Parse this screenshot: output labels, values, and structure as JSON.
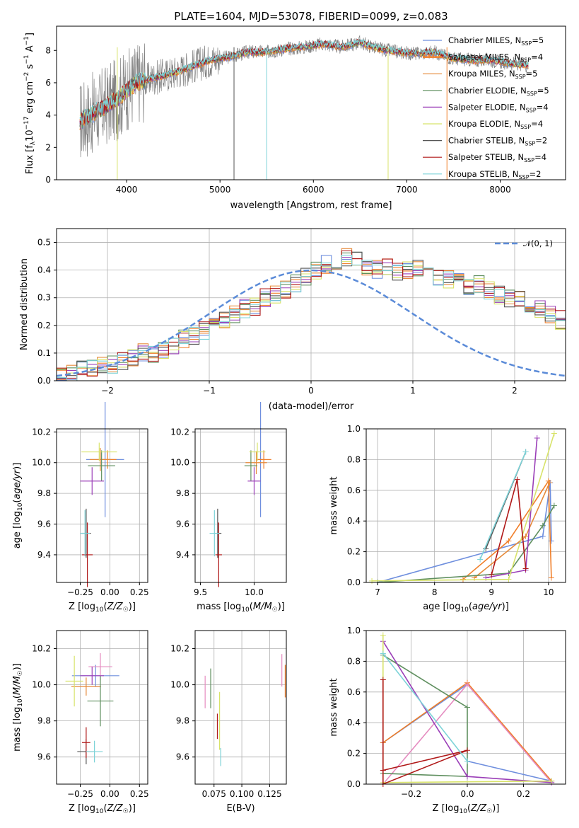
{
  "figure_title": "PLATE=1604, MJD=53078, FIBERID=0099, z=0.083",
  "colors": {
    "cm": "#6f8fde",
    "sm": "#f07f2a",
    "km": "#e68a3a",
    "ce": "#5f8f5f",
    "se": "#9b3fb8",
    "ke": "#d8e36a",
    "cs": "#555555",
    "ss": "#b01818",
    "ks": "#7dd3d8",
    "data": "#808080",
    "norm": "#5b8bd8",
    "pink": "#e58cc0"
  },
  "legend": [
    {
      "name": "Chabrier MILES, N",
      "sub": "SSP",
      "val": "=5",
      "color": "#6f8fde"
    },
    {
      "name": "Salpeter MILES, N",
      "sub": "SSP",
      "val": "=4",
      "color": "#f07f2a"
    },
    {
      "name": "Kroupa MILES, N",
      "sub": "SSP",
      "val": "=5",
      "color": "#e68a3a"
    },
    {
      "name": "Chabrier ELODIE, N",
      "sub": "SSP",
      "val": "=5",
      "color": "#5f8f5f"
    },
    {
      "name": "Salpeter ELODIE, N",
      "sub": "SSP",
      "val": "=4",
      "color": "#9b3fb8"
    },
    {
      "name": "Kroupa ELODIE, N",
      "sub": "SSP",
      "val": "=4",
      "color": "#d8e36a"
    },
    {
      "name": "Chabrier STELIB, N",
      "sub": "SSP",
      "val": "=2",
      "color": "#555555"
    },
    {
      "name": "Salpeter STELIB, N",
      "sub": "SSP",
      "val": "=4",
      "color": "#b01818"
    },
    {
      "name": "Kroupa STELIB, N",
      "sub": "SSP",
      "val": "=2",
      "color": "#7dd3d8"
    }
  ],
  "chart_data": [
    {
      "type": "line",
      "title": "PLATE=1604, MJD=53078, FIBERID=0099, z=0.083",
      "xlabel": "wavelength [Angstrom, rest frame]",
      "ylabel": "Flux [f_λ 10^-17 erg cm^-2 s^-1 A^-1]",
      "xlim": [
        3250,
        8700
      ],
      "ylim": [
        0,
        9.5
      ],
      "xticks": [
        "4000",
        "5000",
        "6000",
        "7000",
        "8000"
      ],
      "yticks": [
        "0",
        "2",
        "4",
        "6",
        "8"
      ],
      "grid": false,
      "legend_position": "top-right",
      "series_note": "observed spectrum (grey) with 9 model fits",
      "x": [
        3500,
        3700,
        3900,
        4100,
        4300,
        4500,
        4700,
        4900,
        5100,
        5300,
        5500,
        5700,
        5900,
        6100,
        6300,
        6500,
        6700,
        6900,
        7100,
        7300,
        7500,
        7700,
        7900,
        8100,
        8300
      ],
      "y": [
        3.6,
        4.3,
        5.0,
        6.0,
        6.3,
        6.6,
        7.0,
        7.4,
        7.6,
        7.9,
        7.9,
        8.1,
        8.2,
        8.4,
        8.2,
        8.5,
        8.1,
        7.9,
        7.8,
        7.9,
        7.5,
        7.4,
        7.4,
        7.2,
        7.1
      ]
    },
    {
      "type": "histogram",
      "xlabel": "(data-model)/error",
      "ylabel": "Normed distribution",
      "xlim": [
        -2.5,
        2.5
      ],
      "ylim": [
        0,
        0.55
      ],
      "xticks": [
        "−2",
        "−1",
        "0",
        "1",
        "2"
      ],
      "yticks": [
        "0.0",
        "0.1",
        "0.2",
        "0.3",
        "0.4",
        "0.5"
      ],
      "grid": true,
      "legend_position": "top-right",
      "reference_label": "𝒩(0, 1)",
      "bin_edges_start": -2.5,
      "bin_width": 0.1,
      "values": [
        0.02,
        0.03,
        0.04,
        0.05,
        0.05,
        0.06,
        0.07,
        0.08,
        0.1,
        0.1,
        0.11,
        0.13,
        0.15,
        0.16,
        0.18,
        0.2,
        0.22,
        0.24,
        0.26,
        0.27,
        0.3,
        0.31,
        0.33,
        0.35,
        0.38,
        0.4,
        0.42,
        0.43,
        0.45,
        0.44,
        0.41,
        0.4,
        0.41,
        0.39,
        0.4,
        0.41,
        0.4,
        0.38,
        0.37,
        0.36,
        0.34,
        0.35,
        0.33,
        0.31,
        0.3,
        0.29,
        0.27,
        0.26,
        0.24,
        0.22
      ]
    },
    {
      "type": "scatter",
      "xlabel": "Z [log10(Z/Z☉)]",
      "ylabel": "age [log10(age/yr)]",
      "xlim": [
        -0.45,
        0.32
      ],
      "ylim": [
        9.22,
        10.22
      ],
      "xticks": [
        "−0.25",
        "0.00",
        "0.25"
      ],
      "yticks": [
        "9.4",
        "9.6",
        "9.8",
        "10.0",
        "10.2"
      ],
      "points": [
        {
          "x": -0.04,
          "y": 10.02,
          "xe": 0.32,
          "ye": 0.75,
          "c": "cm"
        },
        {
          "x": -0.02,
          "y": 10.02,
          "xe": 0.15,
          "ye": 0.12,
          "c": "sm"
        },
        {
          "x": -0.08,
          "y": 10.02,
          "xe": 0.18,
          "ye": 0.15,
          "c": "km"
        },
        {
          "x": -0.07,
          "y": 9.98,
          "xe": 0.23,
          "ye": 0.2,
          "c": "ce"
        },
        {
          "x": -0.15,
          "y": 9.88,
          "xe": 0.2,
          "ye": 0.18,
          "c": "se"
        },
        {
          "x": -0.09,
          "y": 10.07,
          "xe": 0.3,
          "ye": 0.12,
          "c": "ke"
        },
        {
          "x": -0.2,
          "y": 9.54,
          "xe": 0.08,
          "ye": 0.32,
          "c": "cs"
        },
        {
          "x": -0.19,
          "y": 9.4,
          "xe": 0.09,
          "ye": 0.42,
          "c": "ss"
        },
        {
          "x": -0.21,
          "y": 9.54,
          "xe": 0.08,
          "ye": 0.3,
          "c": "ks"
        }
      ]
    },
    {
      "type": "scatter",
      "xlabel": "mass [log10(M/M☉)]",
      "ylabel": "",
      "xlim": [
        9.45,
        10.3
      ],
      "ylim": [
        9.22,
        10.22
      ],
      "xticks": [
        "9.5",
        "10.0"
      ],
      "yticks": [
        "9.4",
        "9.6",
        "9.8",
        "10.0",
        "10.2"
      ],
      "points": [
        {
          "x": 10.06,
          "y": 10.02,
          "xe": 0.06,
          "ye": 0.75,
          "c": "cm"
        },
        {
          "x": 10.09,
          "y": 10.02,
          "xe": 0.14,
          "ye": 0.12,
          "c": "sm"
        },
        {
          "x": 10.02,
          "y": 10.0,
          "xe": 0.2,
          "ye": 0.15,
          "c": "km"
        },
        {
          "x": 9.97,
          "y": 9.98,
          "xe": 0.12,
          "ye": 0.2,
          "c": "ce"
        },
        {
          "x": 10.0,
          "y": 9.88,
          "xe": 0.12,
          "ye": 0.18,
          "c": "se"
        },
        {
          "x": 10.03,
          "y": 10.07,
          "xe": 0.15,
          "ye": 0.12,
          "c": "ke"
        },
        {
          "x": 9.66,
          "y": 9.54,
          "xe": 0.07,
          "ye": 0.32,
          "c": "cs"
        },
        {
          "x": 9.67,
          "y": 9.4,
          "xe": 0.06,
          "ye": 0.42,
          "c": "ss"
        },
        {
          "x": 9.63,
          "y": 9.54,
          "xe": 0.09,
          "ye": 0.3,
          "c": "ks"
        }
      ]
    },
    {
      "type": "line",
      "xlabel": "age [log10(age/yr)]",
      "ylabel": "mass weight",
      "xlim": [
        6.8,
        10.3
      ],
      "ylim": [
        0,
        1.0
      ],
      "xticks": [
        "7",
        "8",
        "9",
        "10"
      ],
      "yticks": [
        "0.0",
        "0.2",
        "0.4",
        "0.6",
        "0.8",
        "1.0"
      ],
      "series": [
        {
          "c": "cm",
          "x": [
            7.0,
            9.9,
            10.03,
            10.05
          ],
          "y": [
            0.0,
            0.3,
            0.65,
            0.27
          ]
        },
        {
          "c": "sm",
          "x": [
            8.5,
            9.3,
            10.0,
            10.05
          ],
          "y": [
            0.02,
            0.27,
            0.66,
            0.03
          ]
        },
        {
          "c": "km",
          "x": [
            8.7,
            9.6,
            10.02
          ],
          "y": [
            0.03,
            0.3,
            0.65
          ]
        },
        {
          "c": "ce",
          "x": [
            7.0,
            9.3,
            9.9,
            10.1
          ],
          "y": [
            0.0,
            0.06,
            0.37,
            0.5
          ]
        },
        {
          "c": "se",
          "x": [
            8.9,
            9.6,
            9.8
          ],
          "y": [
            0.03,
            0.08,
            0.94
          ]
        },
        {
          "c": "ke",
          "x": [
            6.9,
            9.3,
            10.1
          ],
          "y": [
            0.01,
            0.02,
            0.97
          ]
        },
        {
          "c": "cs",
          "x": [
            8.9,
            9.6
          ],
          "y": [
            0.22,
            0.85
          ]
        },
        {
          "c": "ss",
          "x": [
            9.0,
            9.45,
            9.6
          ],
          "y": [
            0.05,
            0.67,
            0.09
          ]
        },
        {
          "c": "ks",
          "x": [
            8.8,
            9.6
          ],
          "y": [
            0.15,
            0.85
          ]
        }
      ]
    },
    {
      "type": "scatter",
      "xlabel": "Z [log10(Z/Z☉)]",
      "ylabel": "mass [log10(M/M☉)]",
      "xlim": [
        -0.45,
        0.32
      ],
      "ylim": [
        9.45,
        10.3
      ],
      "xticks": [
        "−0.25",
        "0.00",
        "0.25"
      ],
      "yticks": [
        "9.6",
        "9.8",
        "10.0",
        "10.2"
      ],
      "points": [
        {
          "x": -0.12,
          "y": 10.05,
          "xe": 0.4,
          "ye": 0.12,
          "c": "cm"
        },
        {
          "x": -0.08,
          "y": 10.1,
          "xe": 0.2,
          "ye": 0.15,
          "c": "pink"
        },
        {
          "x": -0.2,
          "y": 9.99,
          "xe": 0.25,
          "ye": 0.1,
          "c": "km"
        },
        {
          "x": -0.08,
          "y": 9.91,
          "xe": 0.22,
          "ye": 0.28,
          "c": "ce"
        },
        {
          "x": -0.15,
          "y": 10.05,
          "xe": 0.2,
          "ye": 0.1,
          "c": "se"
        },
        {
          "x": -0.3,
          "y": 10.02,
          "xe": 0.15,
          "ye": 0.28,
          "c": "ke"
        },
        {
          "x": -0.2,
          "y": 9.63,
          "xe": 0.15,
          "ye": 0.14,
          "c": "cs"
        },
        {
          "x": -0.2,
          "y": 9.68,
          "xe": 0.07,
          "ye": 0.17,
          "c": "ss"
        },
        {
          "x": -0.13,
          "y": 9.63,
          "xe": 0.14,
          "ye": 0.12,
          "c": "ks"
        }
      ]
    },
    {
      "type": "scatter",
      "xlabel": "E(B-V)",
      "ylabel": "",
      "xlim": [
        0.058,
        0.14
      ],
      "ylim": [
        9.45,
        10.3
      ],
      "xticks": [
        "0.075",
        "0.100",
        "0.125"
      ],
      "yticks": [
        "9.6",
        "9.8",
        "10.0",
        "10.2"
      ],
      "points": [
        {
          "x": 0.067,
          "y": 9.96,
          "ye": 0.18,
          "c": "pink"
        },
        {
          "x": 0.072,
          "y": 9.98,
          "ye": 0.22,
          "c": "ce"
        },
        {
          "x": 0.078,
          "y": 9.77,
          "ye": 0.14,
          "c": "ss"
        },
        {
          "x": 0.08,
          "y": 9.8,
          "ye": 0.32,
          "c": "ke"
        },
        {
          "x": 0.081,
          "y": 9.6,
          "ye": 0.1,
          "c": "ks"
        },
        {
          "x": 0.136,
          "y": 10.08,
          "ye": 0.18,
          "c": "pink"
        },
        {
          "x": 0.139,
          "y": 10.02,
          "ye": 0.18,
          "c": "sm"
        }
      ]
    },
    {
      "type": "line",
      "xlabel": "Z [log10(Z/Z☉)]",
      "ylabel": "mass weight",
      "xlim": [
        -0.36,
        0.35
      ],
      "ylim": [
        0,
        1.0
      ],
      "xticks": [
        "−0.2",
        "0.0",
        "0.2"
      ],
      "yticks": [
        "0.0",
        "0.2",
        "0.4",
        "0.6",
        "0.8",
        "1.0"
      ],
      "series": [
        {
          "c": "cm",
          "x": [
            -0.3,
            0.0,
            0.3,
            0.0
          ],
          "y": [
            0.27,
            0.65,
            0.02,
            0.15
          ]
        },
        {
          "c": "sm",
          "x": [
            -0.3,
            0.0,
            0.3
          ],
          "y": [
            0.27,
            0.66,
            0.02
          ]
        },
        {
          "c": "pink",
          "x": [
            -0.3,
            0.0,
            0.3
          ],
          "y": [
            0.0,
            0.65,
            0.01
          ]
        },
        {
          "c": "ce",
          "x": [
            -0.3,
            0.0,
            0.0,
            -0.3
          ],
          "y": [
            0.07,
            0.05,
            0.5,
            0.84
          ]
        },
        {
          "c": "se",
          "x": [
            -0.3,
            0.0,
            0.3
          ],
          "y": [
            0.93,
            0.05,
            0.01
          ]
        },
        {
          "c": "ke",
          "x": [
            -0.3,
            -0.3,
            0.3
          ],
          "y": [
            0.97,
            0.01,
            0.02
          ]
        },
        {
          "c": "ss",
          "x": [
            -0.3,
            0.0,
            -0.3,
            -0.3
          ],
          "y": [
            0.09,
            0.22,
            0.0,
            0.68
          ]
        },
        {
          "c": "ks",
          "x": [
            -0.3,
            0.0
          ],
          "y": [
            0.85,
            0.15
          ]
        }
      ]
    }
  ]
}
